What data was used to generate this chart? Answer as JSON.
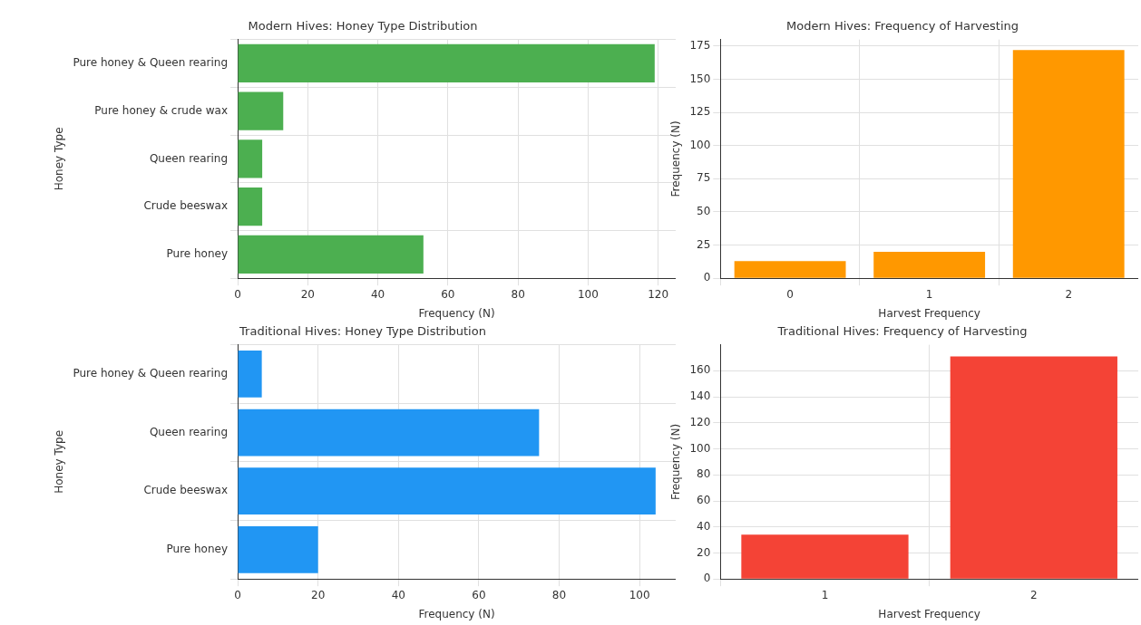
{
  "chart_data": [
    {
      "type": "bar",
      "orientation": "horizontal",
      "title": "Modern Hives: Honey Type Distribution",
      "xlabel": "Frequency (N)",
      "ylabel": "Honey Type",
      "categories": [
        "Pure honey & Queen rearing",
        "Pure honey & crude wax",
        "Queen rearing",
        "Crude beeswax",
        "Pure honey"
      ],
      "values": [
        119,
        13,
        7,
        7,
        53
      ],
      "color": "#4caf50",
      "xlim": [
        0,
        125
      ],
      "xticks": [
        0,
        20,
        40,
        60,
        80,
        100,
        120
      ],
      "grid": true
    },
    {
      "type": "bar",
      "title": "Modern Hives: Frequency of Harvesting",
      "xlabel": "Harvest Frequency",
      "ylabel": "Frequency (N)",
      "categories": [
        "0",
        "1",
        "2"
      ],
      "values": [
        13,
        20,
        172
      ],
      "color": "#ff9800",
      "ylim": [
        0,
        180
      ],
      "yticks": [
        0,
        25,
        50,
        75,
        100,
        125,
        150,
        175
      ],
      "grid": true
    },
    {
      "type": "bar",
      "orientation": "horizontal",
      "title": "Traditional Hives: Honey Type Distribution",
      "xlabel": "Frequency (N)",
      "ylabel": "Honey Type",
      "categories": [
        "Pure honey & Queen rearing",
        "Queen rearing",
        "Crude beeswax",
        "Pure honey"
      ],
      "values": [
        6,
        75,
        104,
        20
      ],
      "color": "#2196f3",
      "xlim": [
        0,
        109
      ],
      "xticks": [
        0,
        20,
        40,
        60,
        80,
        100
      ],
      "grid": true
    },
    {
      "type": "bar",
      "title": "Traditional Hives: Frequency of Harvesting",
      "xlabel": "Harvest Frequency",
      "ylabel": "Frequency (N)",
      "categories": [
        "1",
        "2"
      ],
      "values": [
        34,
        171
      ],
      "color": "#f44336",
      "ylim": [
        0,
        180
      ],
      "yticks": [
        0,
        20,
        40,
        60,
        80,
        100,
        120,
        140,
        160
      ],
      "grid": true
    }
  ]
}
